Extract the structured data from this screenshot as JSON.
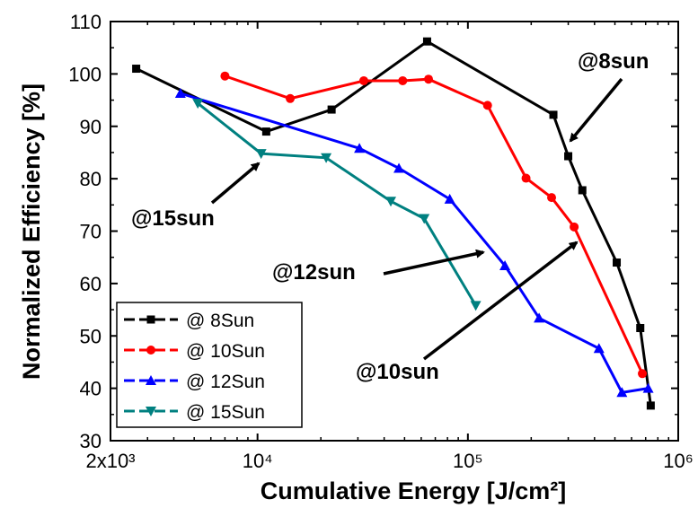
{
  "chart_data": {
    "type": "line",
    "xlabel": "Cumulative Energy [J/cm²]",
    "ylabel": "Normalized Efficiency [%]",
    "x_scale": "log",
    "xlim": [
      2000,
      1000000
    ],
    "ylim": [
      30,
      110
    ],
    "x_ticks": [
      {
        "value": 2000,
        "label": "2x10³"
      },
      {
        "value": 10000,
        "label": "10⁴"
      },
      {
        "value": 100000,
        "label": "10⁵"
      },
      {
        "value": 1000000,
        "label": "10⁶"
      }
    ],
    "y_ticks": [
      30,
      40,
      50,
      60,
      70,
      80,
      90,
      100,
      110
    ],
    "grid": false,
    "legend_position": "bottom-left",
    "series": [
      {
        "name": "@ 8Sun",
        "color": "#000000",
        "marker": "square",
        "x": [
          2650,
          11000,
          22500,
          64000,
          255000,
          300000,
          350000,
          510000,
          660000,
          740000
        ],
        "y": [
          101,
          89,
          93.2,
          106.2,
          92.2,
          84.3,
          77.8,
          64,
          51.5,
          36.7
        ]
      },
      {
        "name": "@ 10Sun",
        "color": "#ff0000",
        "marker": "circle",
        "x": [
          7000,
          14300,
          32000,
          49000,
          65000,
          124000,
          189000,
          250000,
          320000,
          675000
        ],
        "y": [
          99.6,
          95.3,
          98.7,
          98.7,
          99,
          94,
          80.1,
          76.4,
          70.8,
          42.8
        ]
      },
      {
        "name": "@ 12Sun",
        "color": "#0000ff",
        "marker": "triangle-up",
        "x": [
          4300,
          30500,
          47000,
          82000,
          150000,
          218000,
          420000,
          540000,
          720000
        ],
        "y": [
          96.3,
          85.8,
          82,
          76.1,
          63.4,
          53.4,
          47.6,
          39.2,
          40
        ]
      },
      {
        "name": "@ 15Sun",
        "color": "#008080",
        "marker": "triangle-down",
        "x": [
          5200,
          10400,
          21200,
          43000,
          62000,
          109000
        ],
        "y": [
          94.4,
          84.8,
          84,
          75.7,
          72.4,
          55.8
        ]
      }
    ],
    "annotations": [
      {
        "text": "@8sun",
        "series": "@ 8Sun"
      },
      {
        "text": "@10sun",
        "series": "@ 10Sun"
      },
      {
        "text": "@12sun",
        "series": "@ 12Sun"
      },
      {
        "text": "@15sun",
        "series": "@ 15Sun"
      }
    ]
  }
}
